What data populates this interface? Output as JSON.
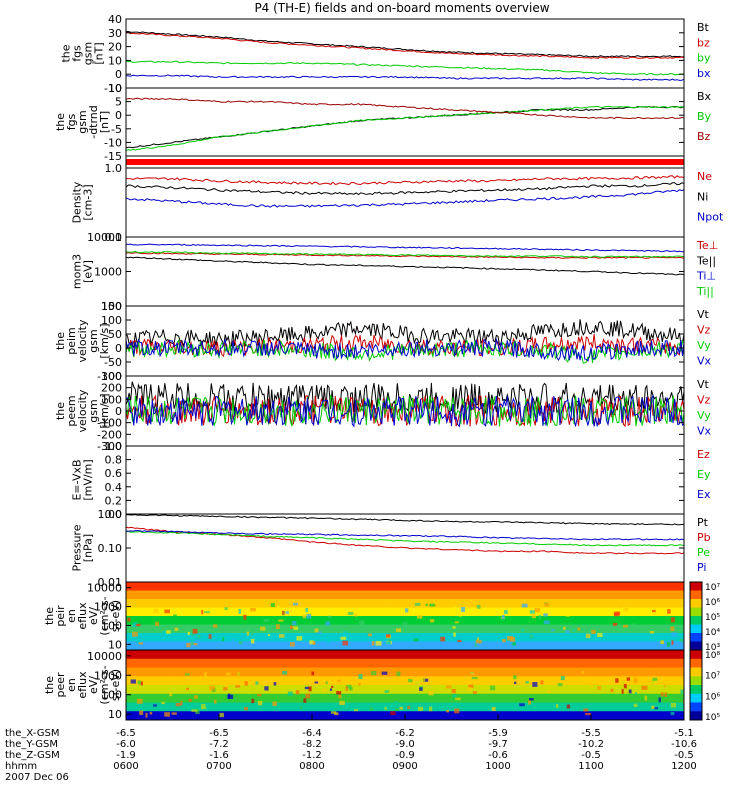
{
  "chart_data": {
    "type": "line",
    "title": "P4 (TH-E) fields and on-board moments overview",
    "panels": [
      {
        "id": "fgs",
        "ylabel": [
          "the",
          "fgs",
          "gsm",
          "[nT]"
        ],
        "ylim": [
          -10,
          40
        ],
        "ticks": [
          "-10",
          "0",
          "10",
          "20",
          "30",
          "40"
        ],
        "scale": "linear",
        "series": [
          {
            "name": "Bt",
            "color": "#000000",
            "shape": "ramp",
            "values": [
              31,
              29,
              27,
              24,
              22,
              20,
              18,
              16,
              15,
              14,
              13,
              13,
              13
            ]
          },
          {
            "name": "bz",
            "color": "#cc0000",
            "shape": "ramp",
            "values": [
              30,
              28,
              26,
              23,
              21,
              19,
              17,
              15,
              14,
              13,
              12,
              12,
              12
            ]
          },
          {
            "name": "by",
            "color": "#00cc00",
            "shape": "ramp",
            "values": [
              9,
              9,
              8,
              8,
              8,
              7,
              6,
              5,
              4,
              3,
              1,
              0,
              0
            ]
          },
          {
            "name": "bx",
            "color": "#0000cc",
            "shape": "ramp",
            "values": [
              -1,
              -1,
              -2,
              -2,
              -2,
              -2,
              -2,
              -3,
              -3,
              -3,
              -3,
              -4,
              -4
            ]
          }
        ]
      },
      {
        "id": "fgs_dtrnd",
        "ylabel": [
          "the",
          "fgs",
          "gsm",
          "-dtrnd",
          "[nT]"
        ],
        "ylim": [
          -15,
          10
        ],
        "ticks": [
          "-15",
          "-10",
          "-5",
          "0",
          "5",
          "10"
        ],
        "scale": "linear",
        "series": [
          {
            "name": "Bx",
            "color": "#000000",
            "shape": "ramp",
            "values": [
              -12,
              -10,
              -8,
              -6,
              -4,
              -2,
              -1,
              0,
              1,
              2,
              2,
              3,
              3
            ]
          },
          {
            "name": "By",
            "color": "#00cc00",
            "shape": "ramp",
            "values": [
              -13,
              -11,
              -8,
              -6,
              -4,
              -2,
              -1,
              0,
              1,
              2,
              3,
              3,
              3
            ]
          },
          {
            "name": "Bz",
            "color": "#990000",
            "shape": "ramp",
            "values": [
              6,
              6,
              5,
              5,
              4,
              4,
              3,
              2,
              1,
              0,
              -1,
              -1,
              -1
            ]
          }
        ]
      },
      {
        "id": "flag",
        "ylabel": [],
        "ylim": [
          0,
          1
        ],
        "ticks": [],
        "scale": "linear",
        "series": []
      },
      {
        "id": "density",
        "ylabel": [
          "Density",
          "[cm-3]"
        ],
        "ylim": [
          0.1,
          1.0
        ],
        "ticks": [
          "0.1",
          "1.0"
        ],
        "scale": "log",
        "series": [
          {
            "name": "Ne",
            "color": "#cc0000",
            "shape": "ramp",
            "values": [
              0.7,
              0.7,
              0.65,
              0.62,
              0.6,
              0.6,
              0.62,
              0.65,
              0.65,
              0.7,
              0.7,
              0.72,
              0.75
            ]
          },
          {
            "name": "Ni",
            "color": "#000000",
            "shape": "ramp",
            "values": [
              0.55,
              0.52,
              0.48,
              0.45,
              0.43,
              0.42,
              0.44,
              0.46,
              0.48,
              0.5,
              0.55,
              0.55,
              0.6
            ]
          },
          {
            "name": "Npot",
            "color": "#0000cc",
            "shape": "ramp",
            "values": [
              0.36,
              0.33,
              0.3,
              0.28,
              0.28,
              0.29,
              0.3,
              0.32,
              0.34,
              0.36,
              0.38,
              0.42,
              0.48
            ]
          }
        ]
      },
      {
        "id": "temp",
        "ylabel": [
          "mom3",
          "[eV]"
        ],
        "ylim": [
          100,
          10000
        ],
        "ticks": [
          "100",
          "1000",
          "10000"
        ],
        "scale": "log",
        "series": [
          {
            "name": "Te⊥",
            "color": "#cc0000",
            "shape": "ramp",
            "values": [
              3500,
              3300,
              3200,
              3100,
              3000,
              2900,
              2800,
              2700,
              2600,
              2500,
              2500,
              2500,
              2500
            ]
          },
          {
            "name": "Te||",
            "color": "#000000",
            "shape": "ramp",
            "values": [
              2600,
              2300,
              2000,
              1800,
              1600,
              1500,
              1400,
              1300,
              1200,
              1100,
              1000,
              900,
              800
            ]
          },
          {
            "name": "Ti⊥",
            "color": "#0000cc",
            "shape": "ramp",
            "values": [
              6000,
              6000,
              5800,
              5600,
              5400,
              5200,
              5000,
              4800,
              4600,
              4400,
              4200,
              4000,
              3800
            ]
          },
          {
            "name": "Ti||",
            "color": "#00cc00",
            "shape": "ramp",
            "values": [
              3700,
              3600,
              3400,
              3300,
              3200,
              3100,
              3000,
              2900,
              2800,
              2800,
              2700,
              2700,
              2700
            ]
          }
        ]
      },
      {
        "id": "peim",
        "ylabel": [
          "the",
          "peim",
          "velocity",
          "gsm",
          "[km/s]"
        ],
        "ylim": [
          -100,
          150
        ],
        "ticks": [
          "-100",
          "-50",
          "0",
          "50",
          "100",
          "150"
        ],
        "scale": "linear",
        "series": [
          {
            "name": "Vt",
            "color": "#000000",
            "shape": "noisy",
            "values": [
              30,
              40,
              30,
              40,
              50,
              70,
              50,
              40,
              40,
              60,
              80,
              60,
              40
            ]
          },
          {
            "name": "Vz",
            "color": "#cc0000",
            "shape": "noisy",
            "values": [
              5,
              5,
              0,
              5,
              10,
              20,
              10,
              0,
              0,
              10,
              20,
              10,
              0
            ]
          },
          {
            "name": "Vy",
            "color": "#00cc00",
            "shape": "noisy",
            "values": [
              -5,
              0,
              -5,
              0,
              -10,
              -20,
              -10,
              -5,
              0,
              -10,
              -30,
              -10,
              0
            ]
          },
          {
            "name": "Vx",
            "color": "#0000cc",
            "shape": "noisy",
            "values": [
              0,
              0,
              0,
              0,
              -10,
              -10,
              0,
              0,
              0,
              -10,
              -20,
              0,
              0
            ]
          }
        ]
      },
      {
        "id": "peem",
        "ylabel": [
          "the",
          "peem",
          "velocity",
          "gsm",
          "[km/s]"
        ],
        "ylim": [
          -300,
          300
        ],
        "ticks": [
          "-300",
          "-200",
          "-100",
          "0",
          "100",
          "200",
          "300"
        ],
        "scale": "linear",
        "series": [
          {
            "name": "Vt",
            "color": "#000000",
            "shape": "noisy",
            "values": [
              120,
              120,
              110,
              110,
              110,
              110,
              110,
              110,
              110,
              110,
              110,
              110,
              110
            ]
          },
          {
            "name": "Vz",
            "color": "#cc0000",
            "shape": "noisy",
            "values": [
              0,
              0,
              0,
              0,
              0,
              0,
              0,
              0,
              0,
              0,
              0,
              0,
              0
            ]
          },
          {
            "name": "Vy",
            "color": "#00cc00",
            "shape": "noisy",
            "values": [
              0,
              0,
              0,
              0,
              0,
              0,
              0,
              0,
              0,
              0,
              0,
              0,
              0
            ]
          },
          {
            "name": "Vx",
            "color": "#0000cc",
            "shape": "noisy",
            "values": [
              0,
              0,
              0,
              0,
              0,
              0,
              0,
              0,
              0,
              0,
              0,
              0,
              0
            ]
          }
        ]
      },
      {
        "id": "efield",
        "ylabel": [
          "E=-VxB",
          "[mV/m]"
        ],
        "ylim": [
          0.0,
          1.0
        ],
        "ticks": [
          "0.0",
          "0.2",
          "0.4",
          "0.6",
          "0.8",
          "1.0"
        ],
        "scale": "linear",
        "series": [
          {
            "name": "Ez",
            "color": "#cc0000",
            "values": []
          },
          {
            "name": "Ey",
            "color": "#00cc00",
            "values": []
          },
          {
            "name": "Ex",
            "color": "#0000cc",
            "values": []
          }
        ]
      },
      {
        "id": "pressure",
        "ylabel": [
          "Pressure",
          "[nPa]"
        ],
        "ylim": [
          0.01,
          1.0
        ],
        "ticks": [
          "0.01",
          "0.10",
          "1.00"
        ],
        "scale": "log",
        "series": [
          {
            "name": "Pt",
            "color": "#000000",
            "shape": "ramp",
            "values": [
              0.95,
              0.9,
              0.85,
              0.8,
              0.75,
              0.7,
              0.65,
              0.6,
              0.58,
              0.55,
              0.52,
              0.5,
              0.5
            ]
          },
          {
            "name": "Pb",
            "color": "#cc0000",
            "shape": "ramp",
            "values": [
              0.4,
              0.3,
              0.25,
              0.2,
              0.15,
              0.12,
              0.1,
              0.09,
              0.08,
              0.08,
              0.07,
              0.07,
              0.07
            ]
          },
          {
            "name": "Pe",
            "color": "#00cc00",
            "shape": "ramp",
            "values": [
              0.3,
              0.28,
              0.25,
              0.22,
              0.2,
              0.18,
              0.16,
              0.15,
              0.14,
              0.13,
              0.12,
              0.12,
              0.12
            ]
          },
          {
            "name": "Pi",
            "color": "#0000cc",
            "shape": "ramp",
            "values": [
              0.32,
              0.3,
              0.28,
              0.26,
              0.25,
              0.24,
              0.23,
              0.22,
              0.2,
              0.19,
              0.18,
              0.18,
              0.18
            ]
          }
        ]
      },
      {
        "id": "peir",
        "type": "heatmap",
        "ylabel": [
          "the",
          "peir",
          "en",
          "eflux",
          "eV/",
          "(cm²-s-",
          "sr-eV)"
        ],
        "ylim": [
          5,
          20000
        ],
        "ticks": [
          "10",
          "100",
          "1000",
          "10000"
        ],
        "scale": "log",
        "colorbar": {
          "ticks": [
            "10⁷",
            "10⁶",
            "10⁵",
            "10⁴",
            "10³"
          ],
          "range": [
            1000,
            10000000
          ]
        }
      },
      {
        "id": "peer",
        "type": "heatmap",
        "ylabel": [
          "the",
          "peer",
          "en",
          "eflux",
          "eV/",
          "(cm²-s-",
          "sr-eV)"
        ],
        "ylim": [
          5,
          20000
        ],
        "ticks": [
          "10",
          "100",
          "1000",
          "10000"
        ],
        "scale": "log",
        "colorbar": {
          "ticks": [
            "10⁸",
            "10⁷",
            "10⁶",
            "10⁵"
          ],
          "range": [
            30000,
            200000000
          ]
        }
      }
    ],
    "x_axis": {
      "rows": [
        {
          "label": "the_X-GSM",
          "values": [
            "-6.5",
            "-6.5",
            "-6.4",
            "-6.2",
            "-5.9",
            "-5.5",
            "-5.1"
          ]
        },
        {
          "label": "the_Y-GSM",
          "values": [
            "-6.0",
            "-7.2",
            "-8.2",
            "-9.0",
            "-9.7",
            "-10.2",
            "-10.6"
          ]
        },
        {
          "label": "the_Z-GSM",
          "values": [
            "-1.9",
            "-1.6",
            "-1.2",
            "-0.9",
            "-0.6",
            "-0.5",
            "-0.5"
          ]
        },
        {
          "label": "hhmm",
          "values": [
            "0600",
            "0700",
            "0800",
            "0900",
            "1000",
            "1100",
            "1200"
          ]
        }
      ],
      "date": "2007 Dec 06"
    }
  }
}
